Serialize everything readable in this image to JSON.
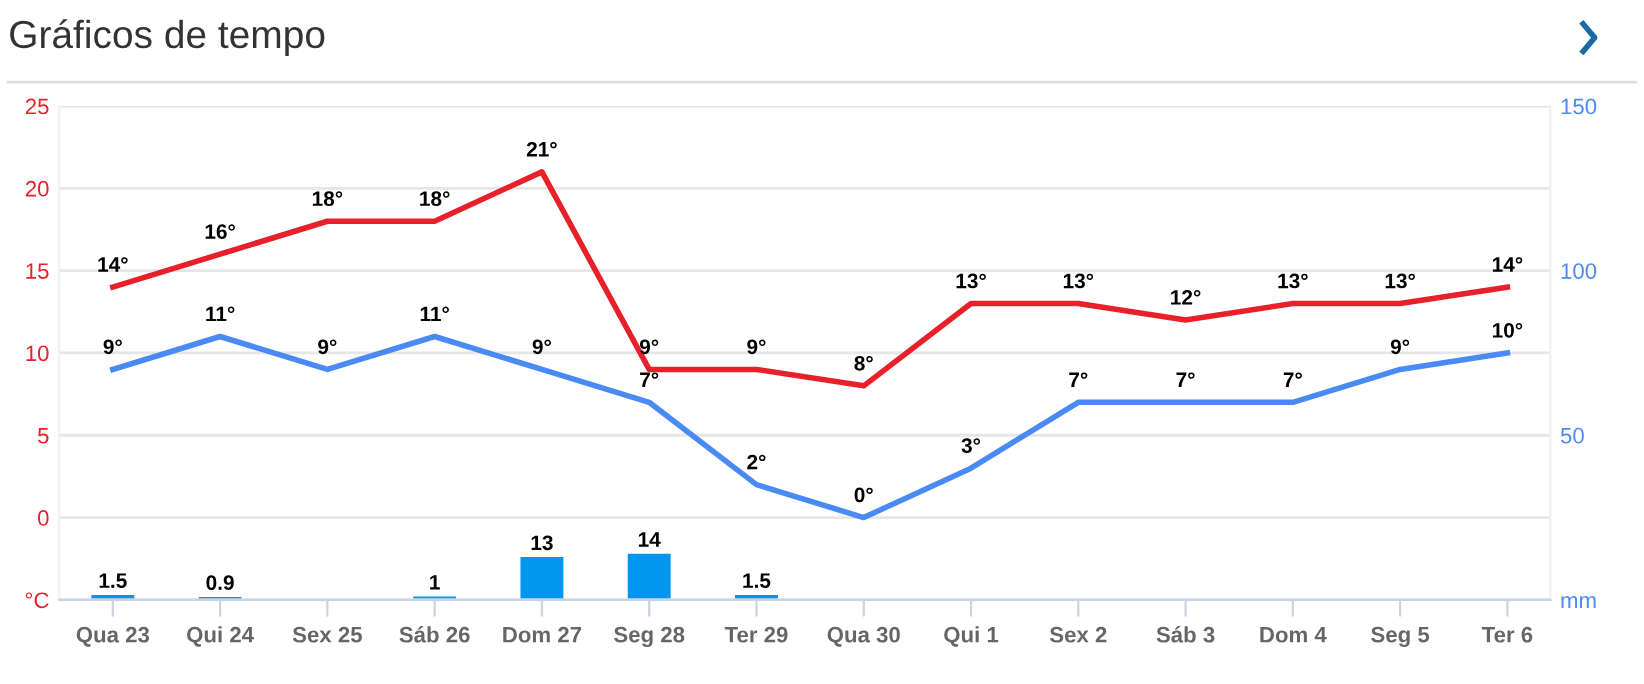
{
  "chart_data": {
    "type": "line",
    "title": "Gráficos de tempo",
    "categories": [
      "Qua 23",
      "Qui 24",
      "Sex 25",
      "Sáb 26",
      "Dom 27",
      "Seg 28",
      "Ter 29",
      "Qua 30",
      "Qui 1",
      "Sex 2",
      "Sáb 3",
      "Dom 4",
      "Seg 5",
      "Ter 6"
    ],
    "series": [
      {
        "color": "#e8202a",
        "values": [
          14,
          16,
          18,
          18,
          21,
          9,
          9,
          8,
          13,
          13,
          12,
          13,
          13,
          14
        ],
        "value_labels": [
          "14°",
          "16°",
          "18°",
          "18°",
          "21°",
          "9°",
          "9°",
          "8°",
          "13°",
          "13°",
          "12°",
          "13°",
          "13°",
          "14°"
        ]
      },
      {
        "color": "#4a8af4",
        "values": [
          9,
          11,
          9,
          11,
          9,
          7,
          2,
          0,
          3,
          7,
          7,
          7,
          9,
          10
        ],
        "value_labels": [
          "9°",
          "11°",
          "9°",
          "11°",
          "9°",
          "7°",
          "2°",
          "0°",
          "3°",
          "7°",
          "7°",
          "7°",
          "9°",
          "10°"
        ]
      },
      {
        "type": "bar",
        "axis": "y2",
        "color": "#0096f0",
        "values": [
          1.5,
          0.9,
          null,
          1,
          13,
          14,
          1.5,
          null,
          null,
          null,
          null,
          null,
          null,
          null
        ],
        "value_labels": [
          "1.5",
          "0.9",
          null,
          "1",
          "13",
          "14",
          "1.5",
          null,
          null,
          null,
          null,
          null,
          null,
          null
        ]
      }
    ],
    "ylim": [
      -5,
      25
    ],
    "yticks": [
      {
        "value": -5,
        "label": "°C"
      },
      0,
      5,
      10,
      15,
      20,
      25
    ],
    "y2lim": [
      0,
      150
    ],
    "y2ticks": [
      {
        "value": 0,
        "label": "mm"
      },
      50,
      100,
      150
    ],
    "grid": "y",
    "legend": false,
    "marker": "none",
    "line_style": "solid"
  }
}
